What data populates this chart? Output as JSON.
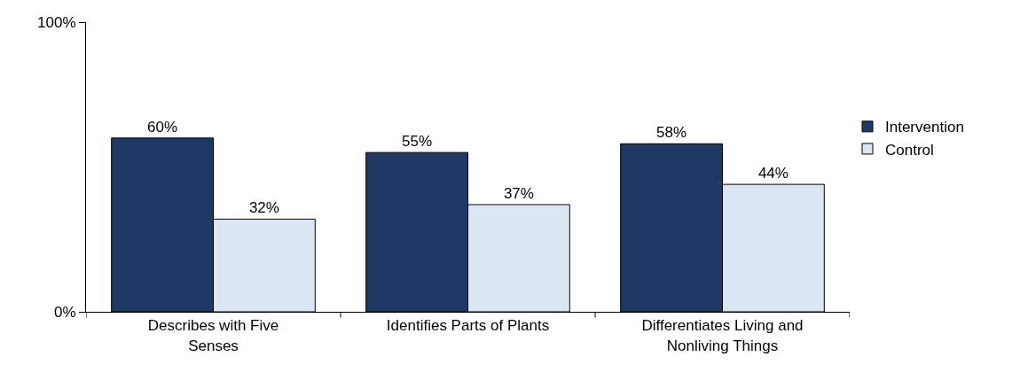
{
  "chart_data": {
    "type": "bar",
    "categories": [
      "Describes with Five Senses",
      "Identifies Parts of Plants",
      "Differentiates Living and Nonliving Things"
    ],
    "series": [
      {
        "name": "Intervention",
        "color": "#1f3864",
        "values": [
          60,
          55,
          58
        ],
        "value_labels": [
          "60%",
          "55%",
          "58%"
        ]
      },
      {
        "name": "Control",
        "color": "#dce6f2",
        "values": [
          32,
          37,
          44
        ],
        "value_labels": [
          "32%",
          "37%",
          "44%"
        ]
      }
    ],
    "ylim": [
      0,
      100
    ],
    "yticks": [
      {
        "value": 0,
        "label": "0%"
      },
      {
        "value": 100,
        "label": "100%"
      }
    ],
    "legend": "right"
  }
}
